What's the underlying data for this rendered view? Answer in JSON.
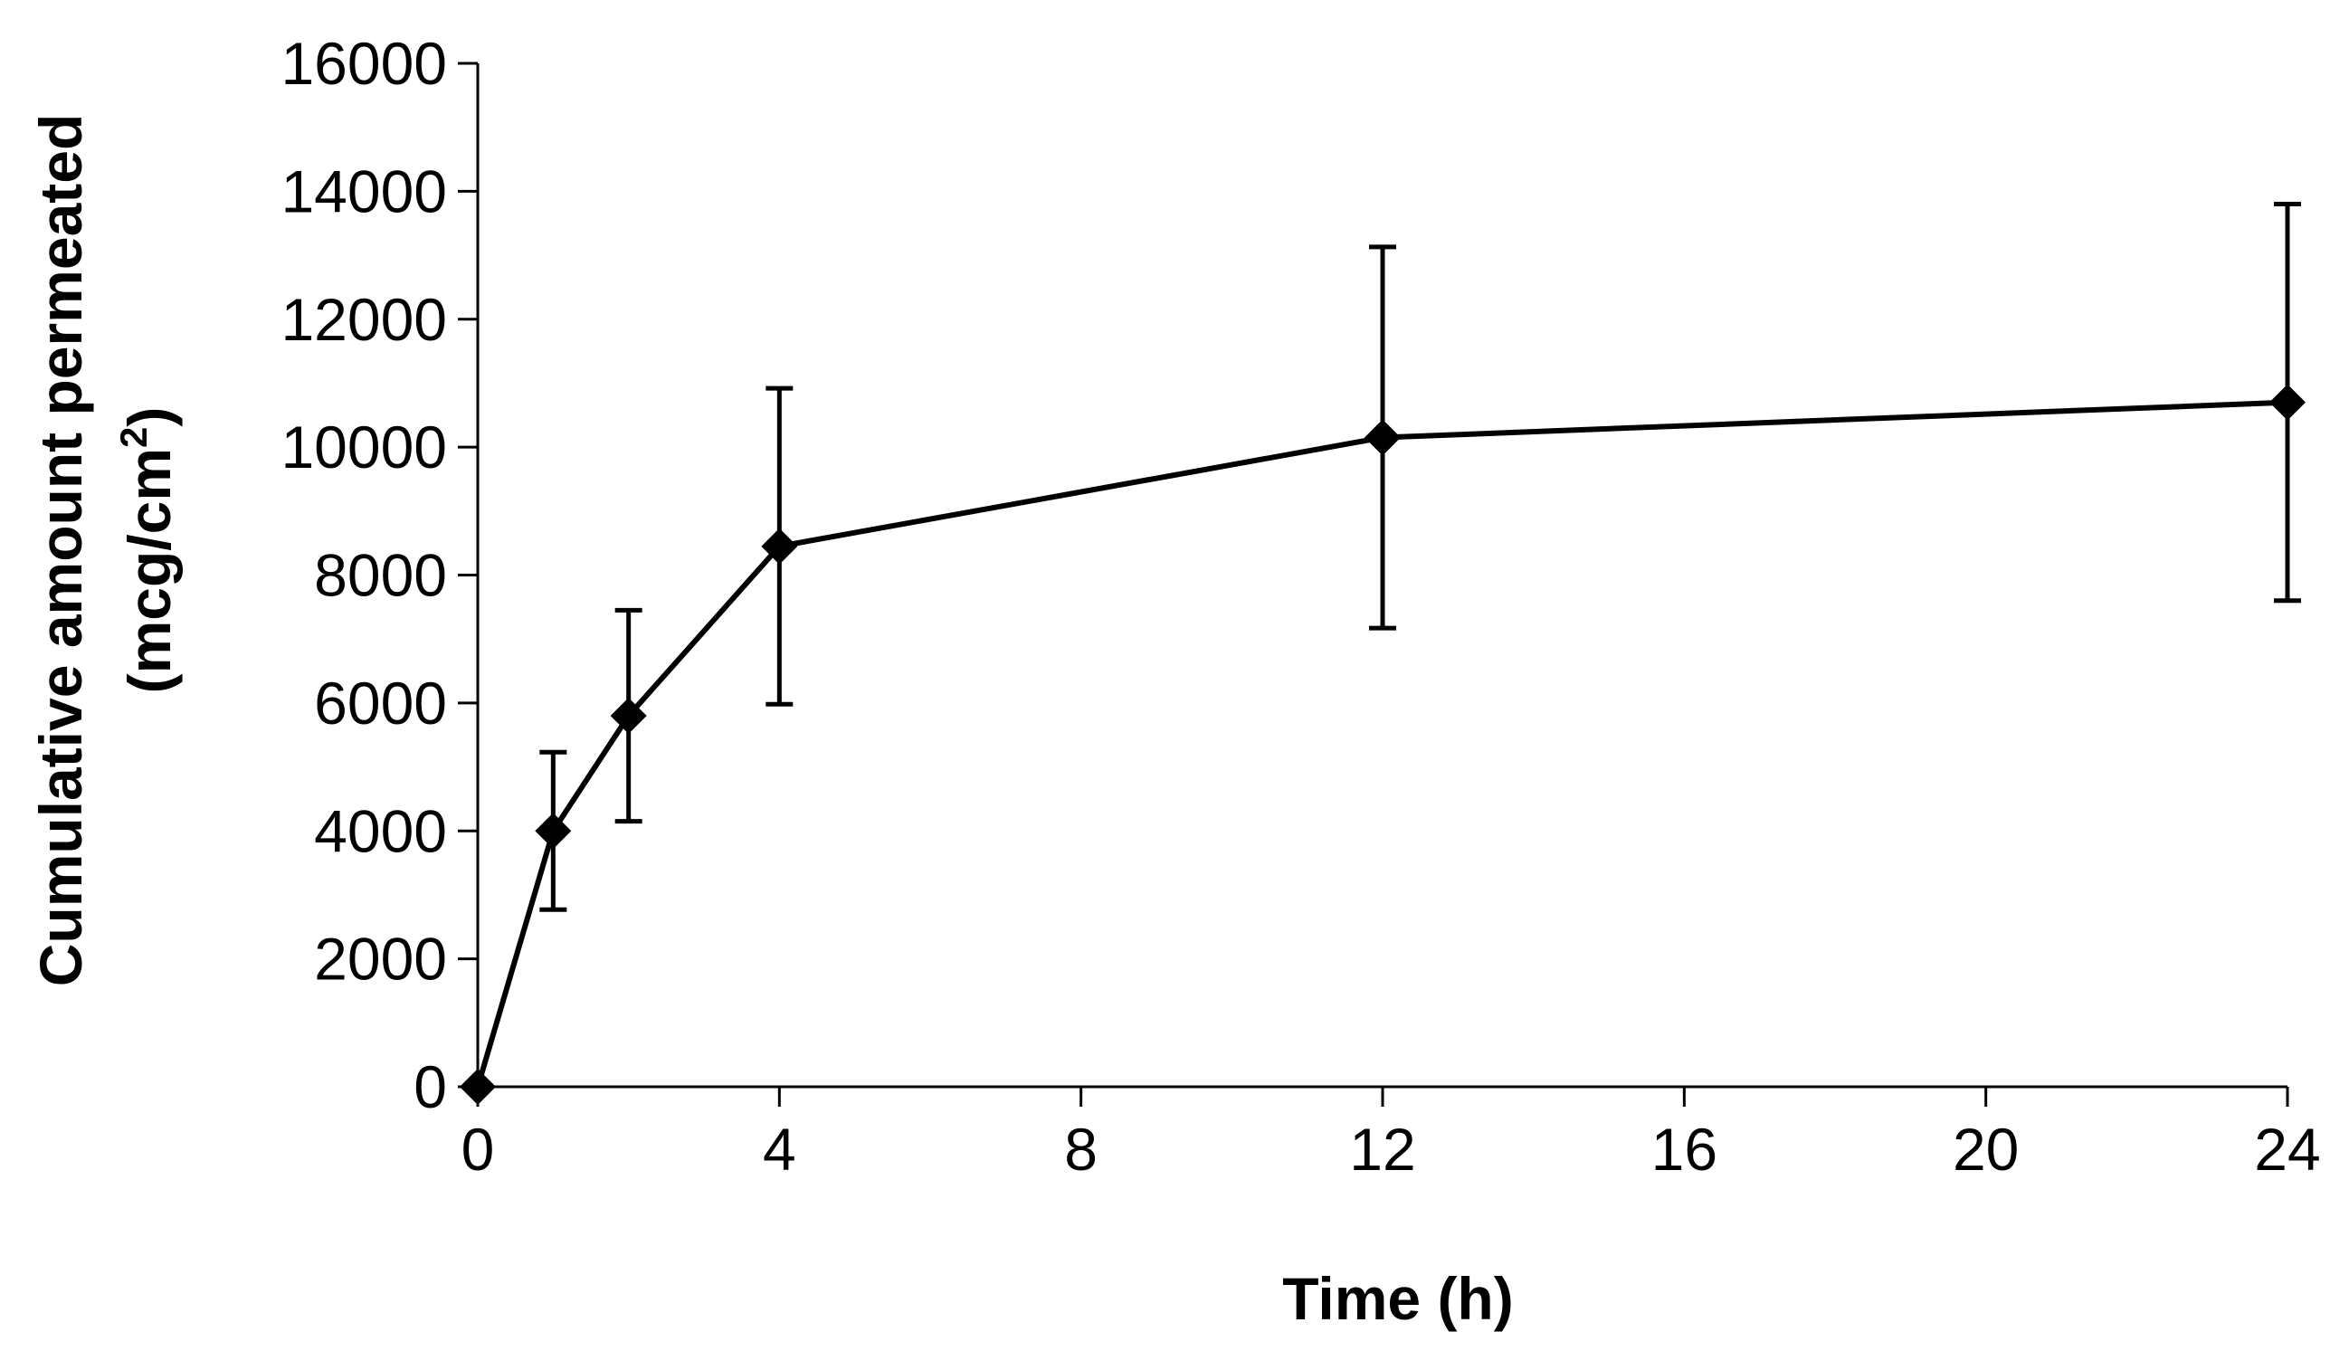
{
  "chart_data": {
    "type": "line",
    "title": "",
    "xlabel": "Time (h)",
    "ylabel_line1": "Cumulative amount permeated",
    "ylabel_line2_prefix": "(mcg/cm",
    "ylabel_line2_superscript": "2",
    "ylabel_line2_suffix": ")",
    "xlim": [
      0,
      24
    ],
    "ylim": [
      0,
      16000
    ],
    "xticks": [
      0,
      4,
      8,
      12,
      16,
      20,
      24
    ],
    "yticks": [
      0,
      2000,
      4000,
      6000,
      8000,
      10000,
      12000,
      14000,
      16000
    ],
    "grid": false,
    "legend": "none",
    "series": [
      {
        "name": "Cumulative amount permeated",
        "marker": "diamond",
        "color": "#000000",
        "x": [
          0,
          1,
          2,
          4,
          12,
          24
        ],
        "y": [
          0,
          4000,
          5800,
          8450,
          10150,
          10700
        ],
        "error": [
          0,
          1230,
          1650,
          2470,
          2980,
          3100
        ]
      }
    ]
  }
}
